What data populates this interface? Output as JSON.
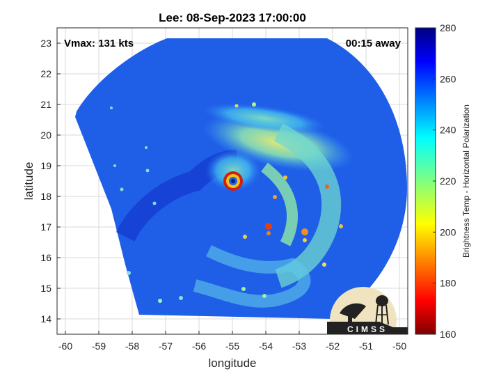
{
  "title": "Lee: 08-Sep-2023 17:00:00",
  "vmax_label": "Vmax: 131 kts",
  "time_offset_label": "00:15 away",
  "xlabel": "longitude",
  "ylabel": "latitude",
  "colorbar_label": "Brightness Temp - Horizontal Polarization",
  "logo_text": "CIMSS",
  "colors": {
    "background_field": "#1f5fe8",
    "axes_frame": "#262626",
    "grid": "#d9d9d9"
  },
  "chart_data": {
    "type": "heatmap",
    "xlim": [
      -60.25,
      -49.75
    ],
    "ylim": [
      13.5,
      23.5
    ],
    "x_ticks": [
      -60,
      -59,
      -58,
      -57,
      -56,
      -55,
      -54,
      -53,
      -52,
      -51,
      -50
    ],
    "y_ticks": [
      14,
      15,
      16,
      17,
      18,
      19,
      20,
      21,
      22,
      23
    ],
    "grid": true,
    "storm_center": {
      "lon": -54.9,
      "lat": 18.5
    },
    "colorbar": {
      "range": [
        160,
        280
      ],
      "ticks": [
        160,
        180,
        200,
        220,
        240,
        260,
        280
      ],
      "colormap": "jet"
    }
  }
}
